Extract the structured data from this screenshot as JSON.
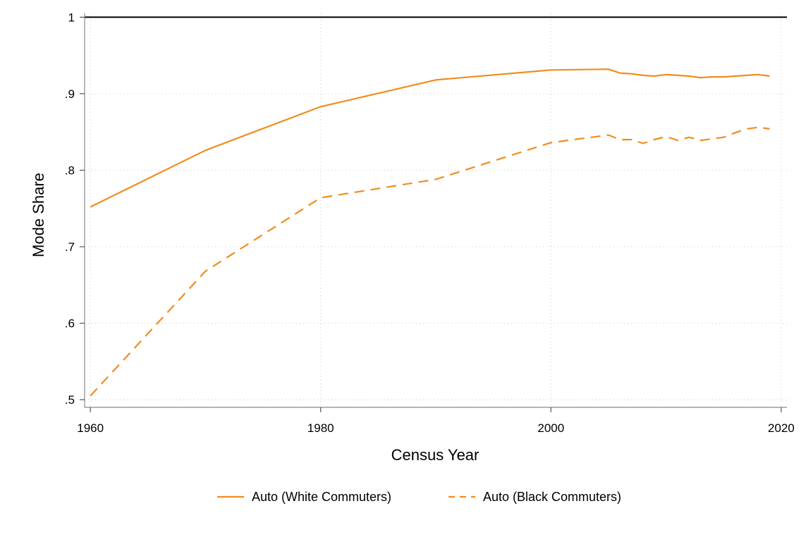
{
  "chart_data": {
    "type": "line",
    "title": "",
    "xlabel": "Census Year",
    "ylabel": "Mode Share",
    "xlim": [
      1959.5,
      2020.5
    ],
    "ylim": [
      0.49,
      1.005
    ],
    "x_ticks": [
      {
        "value": 1960,
        "label": "1960"
      },
      {
        "value": 1980,
        "label": "1980"
      },
      {
        "value": 2000,
        "label": "2000"
      },
      {
        "value": 2020,
        "label": "2020"
      }
    ],
    "y_ticks": [
      {
        "value": 0.5,
        "label": ".5"
      },
      {
        "value": 0.6,
        "label": ".6"
      },
      {
        "value": 0.7,
        "label": ".7"
      },
      {
        "value": 0.8,
        "label": ".8"
      },
      {
        "value": 0.9,
        "label": ".9"
      },
      {
        "value": 1.0,
        "label": "1"
      }
    ],
    "grid": true,
    "reference_line": {
      "y": 1.0,
      "color": "#000000"
    },
    "legend_position": "bottom",
    "series": [
      {
        "name": "Auto (White Commuters)",
        "color": "#f28c1e",
        "style": "solid",
        "x": [
          1960,
          1970,
          1980,
          1990,
          2000,
          2005,
          2006,
          2007,
          2008,
          2009,
          2010,
          2011,
          2012,
          2013,
          2014,
          2015,
          2016,
          2017,
          2018,
          2019
        ],
        "y": [
          0.752,
          0.826,
          0.883,
          0.918,
          0.931,
          0.932,
          0.927,
          0.926,
          0.924,
          0.923,
          0.925,
          0.924,
          0.923,
          0.921,
          0.922,
          0.922,
          0.923,
          0.924,
          0.925,
          0.923
        ]
      },
      {
        "name": "Auto (Black Commuters)",
        "color": "#f28c1e",
        "style": "dashed",
        "x": [
          1960,
          1970,
          1980,
          1990,
          2000,
          2005,
          2006,
          2007,
          2008,
          2009,
          2010,
          2011,
          2012,
          2013,
          2014,
          2015,
          2016,
          2017,
          2018,
          2019
        ],
        "y": [
          0.505,
          0.668,
          0.764,
          0.788,
          0.836,
          0.846,
          0.84,
          0.84,
          0.835,
          0.84,
          0.844,
          0.839,
          0.843,
          0.839,
          0.841,
          0.843,
          0.849,
          0.854,
          0.856,
          0.854
        ]
      }
    ]
  }
}
